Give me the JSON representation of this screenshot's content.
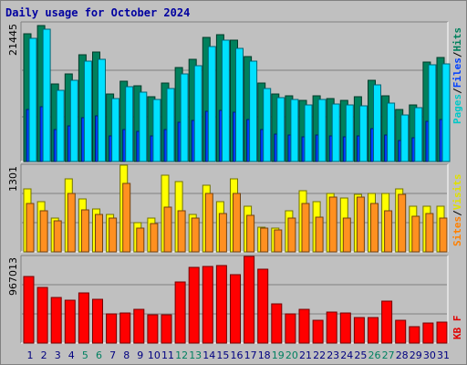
{
  "chart_data": {
    "type": "bar",
    "title": "Daily usage for October 2024",
    "categories": [
      "1",
      "2",
      "3",
      "4",
      "5",
      "6",
      "7",
      "8",
      "9",
      "10",
      "11",
      "12",
      "13",
      "14",
      "15",
      "16",
      "17",
      "18",
      "19",
      "20",
      "21",
      "22",
      "23",
      "24",
      "25",
      "26",
      "27",
      "28",
      "29",
      "30",
      "31"
    ],
    "weekend_days": [
      5,
      6,
      12,
      13,
      19,
      20,
      26,
      27
    ],
    "panels": [
      {
        "id": "hits-files-pages",
        "max_label": "21445",
        "ymax": 21445,
        "side_label": [
          {
            "text": "Pages",
            "color": "#00c8c8"
          },
          {
            "text": "/",
            "color": "#000000"
          },
          {
            "text": "Files",
            "color": "#0040ff"
          },
          {
            "text": "/",
            "color": "#000000"
          },
          {
            "text": "Hits",
            "color": "#00805c"
          }
        ],
        "series": [
          {
            "name": "Hits",
            "color": "#00805c",
            "values": [
              19800,
              21000,
              12000,
              13500,
              16500,
              16900,
              10500,
              12400,
              11700,
              10000,
              12200,
              14600,
              15800,
              19200,
              19600,
              18800,
              16200,
              12200,
              10500,
              10200,
              9500,
              10200,
              9800,
              9400,
              10000,
              12600,
              10200,
              8000,
              8800,
              15400,
              16100
            ]
          },
          {
            "name": "Files",
            "color": "#0040ff",
            "values": [
              8000,
              8500,
              5000,
              5500,
              6800,
              7000,
              4000,
              5000,
              4600,
              4000,
              4900,
              6000,
              6400,
              7800,
              7900,
              7600,
              6500,
              4900,
              4200,
              4100,
              3800,
              4100,
              3900,
              3800,
              4000,
              5100,
              4100,
              3200,
              3600,
              6200,
              6500
            ]
          },
          {
            "name": "Pages",
            "color": "#00e0ff",
            "values": [
              19000,
              20500,
              11000,
              12500,
              15500,
              15800,
              9800,
              11600,
              10700,
              9600,
              11300,
              13600,
              14800,
              17800,
              18800,
              17500,
              15500,
              11300,
              9900,
              9600,
              8700,
              9600,
              8900,
              8800,
              8600,
              11800,
              9100,
              7200,
              8300,
              15000,
              15100
            ]
          }
        ]
      },
      {
        "id": "visits-sites",
        "max_label": "1301",
        "ymax": 1301,
        "side_label": [
          {
            "text": "Sites",
            "color": "#ff8000"
          },
          {
            "text": "/",
            "color": "#000000"
          },
          {
            "text": "Visits",
            "color": "#e0e000"
          }
        ],
        "series": [
          {
            "name": "Visits",
            "color": "#ffff00",
            "values": [
              950,
              760,
              500,
              1100,
              800,
              650,
              560,
              1300,
              440,
              500,
              1150,
              1050,
              560,
              1000,
              760,
              1100,
              680,
              370,
              350,
              620,
              920,
              760,
              880,
              810,
              860,
              870,
              880,
              950,
              690,
              690,
              690
            ]
          },
          {
            "name": "Sites",
            "color": "#ff9020",
            "values": [
              720,
              620,
              460,
              880,
              630,
              560,
              500,
              1030,
              360,
              430,
              670,
              610,
              500,
              880,
              580,
              870,
              550,
              350,
              330,
              500,
              720,
              520,
              820,
              500,
              820,
              730,
              620,
              860,
              530,
              580,
              500
            ]
          }
        ]
      },
      {
        "id": "kbf",
        "max_label": "967013",
        "ymax": 967013,
        "side_label": [
          {
            "text": "KB F",
            "color": "#e00000"
          }
        ],
        "series": [
          {
            "name": "KB F",
            "color": "#ff0000",
            "values": [
              740000,
              620000,
              510000,
              480000,
              560000,
              490000,
              330000,
              340000,
              380000,
              320000,
              320000,
              680000,
              840000,
              860000,
              870000,
              760000,
              967013,
              820000,
              440000,
              330000,
              380000,
              250000,
              350000,
              340000,
              280000,
              280000,
              470000,
              250000,
              180000,
              220000,
              230000
            ]
          }
        ]
      }
    ]
  }
}
